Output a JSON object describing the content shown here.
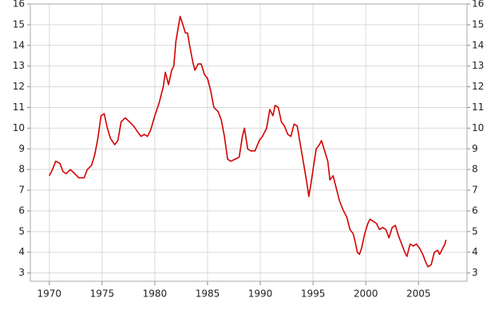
{
  "chart_data": {
    "type": "line",
    "x": [
      1970.0,
      1970.3,
      1970.6,
      1971.0,
      1971.3,
      1971.6,
      1972.0,
      1972.4,
      1972.8,
      1973.3,
      1973.6,
      1974.0,
      1974.3,
      1974.6,
      1974.9,
      1975.2,
      1975.5,
      1975.8,
      1976.2,
      1976.5,
      1976.8,
      1977.2,
      1977.6,
      1978.0,
      1978.4,
      1978.7,
      1979.0,
      1979.3,
      1979.6,
      1980.0,
      1980.4,
      1980.8,
      1981.0,
      1981.3,
      1981.6,
      1981.8,
      1982.0,
      1982.2,
      1982.4,
      1982.6,
      1982.9,
      1983.1,
      1983.3,
      1983.6,
      1983.8,
      1984.1,
      1984.4,
      1984.7,
      1985.0,
      1985.3,
      1985.6,
      1986.0,
      1986.3,
      1986.6,
      1986.9,
      1987.2,
      1987.6,
      1988.0,
      1988.3,
      1988.5,
      1988.8,
      1989.1,
      1989.5,
      1989.9,
      1990.2,
      1990.6,
      1990.9,
      1991.2,
      1991.4,
      1991.7,
      1992.0,
      1992.3,
      1992.6,
      1992.9,
      1993.2,
      1993.5,
      1993.8,
      1994.1,
      1994.4,
      1994.6,
      1994.8,
      1995.0,
      1995.3,
      1995.6,
      1995.8,
      1996.1,
      1996.4,
      1996.6,
      1996.9,
      1997.2,
      1997.5,
      1997.8,
      1998.2,
      1998.5,
      1998.8,
      1999.0,
      1999.2,
      1999.4,
      1999.6,
      1999.9,
      2000.2,
      2000.4,
      2000.7,
      2001.0,
      2001.3,
      2001.6,
      2001.9,
      2002.2,
      2002.5,
      2002.8,
      2003.1,
      2003.4,
      2003.7,
      2003.9,
      2004.2,
      2004.5,
      2004.8,
      2005.1,
      2005.4,
      2005.7,
      2005.9,
      2006.2,
      2006.5,
      2006.8,
      2007.0,
      2007.2,
      2007.5,
      2007.6
    ],
    "series": [
      {
        "color": "#d40000",
        "values": [
          7.7,
          8.0,
          8.4,
          8.3,
          7.9,
          7.8,
          8.0,
          7.8,
          7.6,
          7.6,
          8.0,
          8.2,
          8.7,
          9.5,
          10.6,
          10.7,
          10.0,
          9.5,
          9.2,
          9.4,
          10.3,
          10.5,
          10.3,
          10.1,
          9.8,
          9.6,
          9.7,
          9.6,
          9.9,
          10.6,
          11.2,
          12.0,
          12.7,
          12.1,
          12.8,
          13.0,
          14.2,
          14.8,
          15.4,
          15.1,
          14.6,
          14.6,
          14.0,
          13.2,
          12.8,
          13.1,
          13.1,
          12.6,
          12.4,
          11.8,
          11.0,
          10.8,
          10.4,
          9.6,
          8.5,
          8.4,
          8.5,
          8.6,
          9.6,
          10.0,
          9.0,
          8.9,
          8.9,
          9.4,
          9.6,
          10.0,
          10.9,
          10.6,
          11.1,
          11.0,
          10.3,
          10.1,
          9.7,
          9.6,
          10.2,
          10.1,
          9.2,
          8.3,
          7.4,
          6.7,
          7.3,
          8.0,
          9.0,
          9.2,
          9.4,
          8.9,
          8.4,
          7.5,
          7.7,
          7.1,
          6.5,
          6.1,
          5.7,
          5.1,
          4.9,
          4.5,
          4.0,
          3.9,
          4.2,
          4.9,
          5.4,
          5.6,
          5.5,
          5.4,
          5.1,
          5.2,
          5.1,
          4.7,
          5.2,
          5.3,
          4.8,
          4.4,
          4.0,
          3.8,
          4.4,
          4.3,
          4.4,
          4.2,
          3.9,
          3.5,
          3.3,
          3.4,
          4.0,
          4.1,
          3.9,
          4.1,
          4.4,
          4.6
        ]
      }
    ],
    "xlim": [
      1968.2,
      2009.6
    ],
    "xticks": [
      1970,
      1975,
      1980,
      1985,
      1990,
      1995,
      2000,
      2005
    ],
    "ylim": [
      2.6,
      16
    ],
    "yticks": [
      3,
      4,
      5,
      6,
      7,
      8,
      9,
      10,
      11,
      12,
      13,
      14,
      15,
      16
    ],
    "grid": true,
    "mirror_y_axis": true
  }
}
